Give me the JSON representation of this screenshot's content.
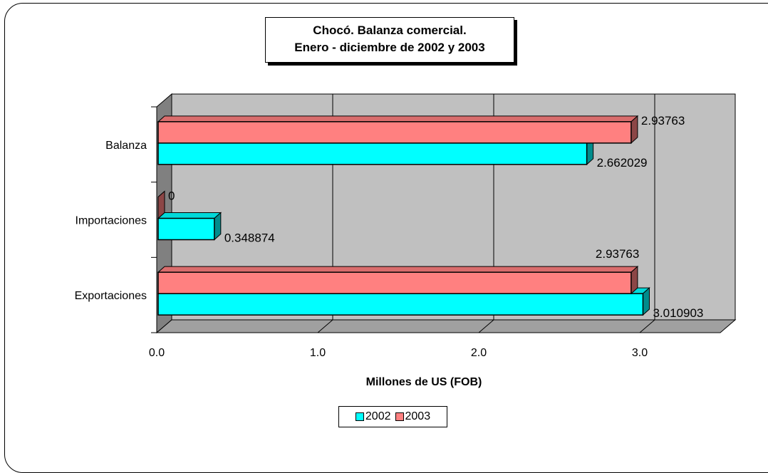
{
  "title_line1": "Chocó. Balanza comercial.",
  "title_line2": "Enero - diciembre de 2002 y 2003",
  "chart_data": {
    "type": "bar",
    "orientation": "horizontal",
    "categories": [
      "Exportaciones",
      "Importaciones",
      "Balanza"
    ],
    "series": [
      {
        "name": "2002",
        "values": [
          3.010903,
          0.348874,
          2.662029
        ],
        "color": "#00FFFF",
        "labels": [
          "3.010903",
          "0.348874",
          "2.662029"
        ]
      },
      {
        "name": "2003",
        "values": [
          2.93763,
          0,
          2.93763
        ],
        "color": "#FF8080",
        "labels": [
          "2.93763",
          "0",
          "2.93763"
        ]
      }
    ],
    "xlabel": "Millones de US (FOB)",
    "xlim": [
      0,
      3.5
    ],
    "xticks": [
      "0.0",
      "1.0",
      "2.0",
      "3.0"
    ],
    "grid": true,
    "legend": "bottom"
  },
  "colors": {
    "wall": "#C0C0C0",
    "floor": "#A0A0A0"
  }
}
